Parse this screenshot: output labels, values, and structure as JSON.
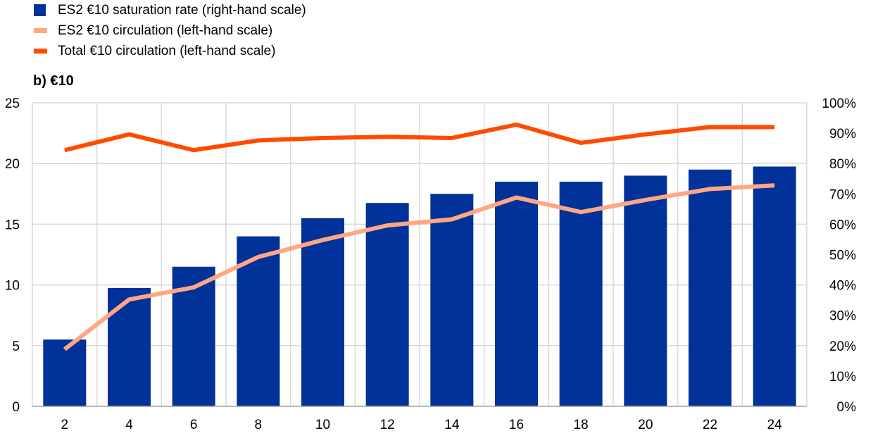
{
  "legend": [
    {
      "label": "ES2 €10 saturation rate (right-hand scale)",
      "color": "#003299",
      "kind": "bar"
    },
    {
      "label": "ES2 €10 circulation (left-hand scale)",
      "color": "#FFA782",
      "kind": "line"
    },
    {
      "label": "Total €10 circulation (left-hand scale)",
      "color": "#FF4B00",
      "kind": "line"
    }
  ],
  "chart_data": {
    "type": "bar+line",
    "title": "b) €10",
    "categories": [
      "2",
      "4",
      "6",
      "8",
      "10",
      "12",
      "14",
      "16",
      "18",
      "20",
      "22",
      "24"
    ],
    "y_left": {
      "lim": [
        0,
        25
      ],
      "ticks": [
        "0",
        "5",
        "10",
        "15",
        "20",
        "25"
      ]
    },
    "y_right": {
      "lim": [
        0,
        100
      ],
      "ticks": [
        "0%",
        "10%",
        "20%",
        "30%",
        "40%",
        "50%",
        "60%",
        "70%",
        "80%",
        "90%",
        "100%"
      ]
    },
    "grid": true,
    "legend_position": "top-left",
    "series": [
      {
        "name": "ES2 €10 saturation rate (right-hand scale)",
        "type": "bar",
        "axis": "right",
        "color": "#003299",
        "values": [
          22,
          39,
          46,
          56,
          62,
          67,
          70,
          74,
          74,
          76,
          78,
          79
        ]
      },
      {
        "name": "ES2 €10 circulation (left-hand scale)",
        "type": "line",
        "axis": "left",
        "color": "#FFA782",
        "values": [
          4.7,
          8.8,
          9.8,
          12.3,
          13.7,
          14.9,
          15.4,
          17.2,
          16.0,
          17.0,
          17.9,
          18.2
        ]
      },
      {
        "name": "Total €10 circulation (left-hand scale)",
        "type": "line",
        "axis": "left",
        "color": "#FF4B00",
        "values": [
          21.1,
          22.4,
          21.1,
          21.9,
          22.1,
          22.2,
          22.1,
          23.2,
          21.7,
          22.4,
          23.0,
          23.0
        ]
      }
    ]
  }
}
